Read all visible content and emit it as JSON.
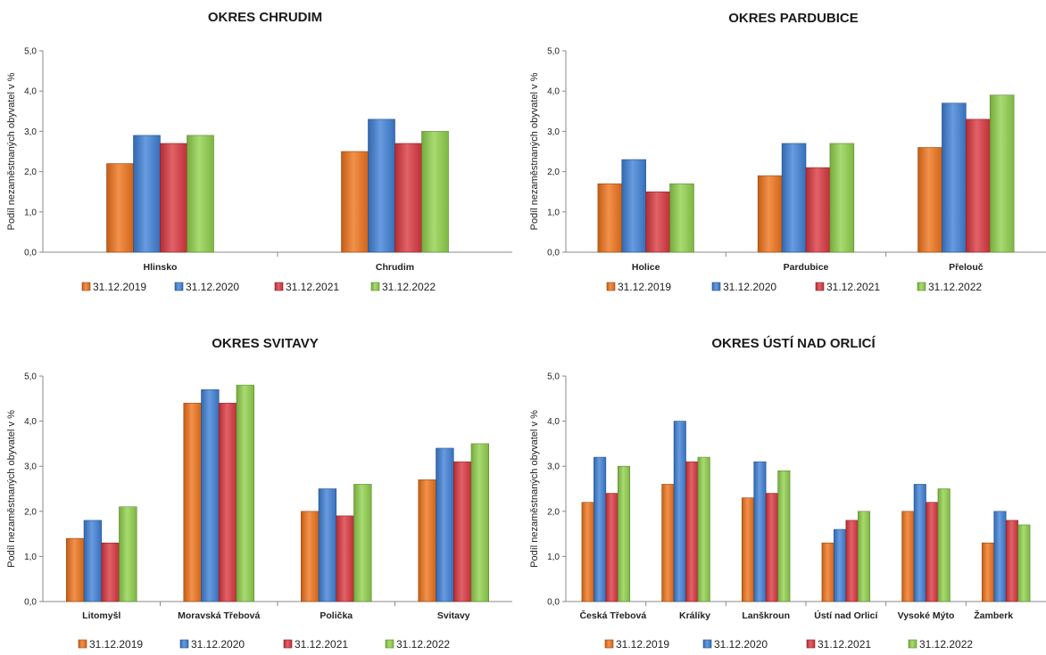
{
  "series_colors": [
    "#ee7219",
    "#3d7fd6",
    "#d9363e",
    "#8fd04a"
  ],
  "chart_data": [
    {
      "type": "bar",
      "title": "OKRES CHRUDIM",
      "ylabel": "Podíl nezaměstnaných obyvatel v %",
      "ylim": [
        0,
        5
      ],
      "yticks": [
        "0,0",
        "1,0",
        "2,0",
        "3,0",
        "4,0",
        "5,0"
      ],
      "grid": false,
      "legend": "bottom",
      "categories": [
        "Hlinsko",
        "Chrudim"
      ],
      "series": [
        {
          "name": "31.12.2019",
          "values": [
            2.2,
            2.5
          ]
        },
        {
          "name": "31.12.2020",
          "values": [
            2.9,
            3.3
          ]
        },
        {
          "name": "31.12.2021",
          "values": [
            2.7,
            2.7
          ]
        },
        {
          "name": "31.12.2022",
          "values": [
            2.9,
            3.0
          ]
        }
      ]
    },
    {
      "type": "bar",
      "title": "OKRES PARDUBICE",
      "ylabel": "Podíl nezaměstnaných obyvatel v %",
      "ylim": [
        0,
        5
      ],
      "yticks": [
        "0,0",
        "1,0",
        "2,0",
        "3,0",
        "4,0",
        "5,0"
      ],
      "grid": false,
      "legend": "bottom",
      "categories": [
        "Holice",
        "Pardubice",
        "Přelouč"
      ],
      "series": [
        {
          "name": "31.12.2019",
          "values": [
            1.7,
            1.9,
            2.6
          ]
        },
        {
          "name": "31.12.2020",
          "values": [
            2.3,
            2.7,
            3.7
          ]
        },
        {
          "name": "31.12.2021",
          "values": [
            1.5,
            2.1,
            3.3
          ]
        },
        {
          "name": "31.12.2022",
          "values": [
            1.7,
            2.7,
            3.9
          ]
        }
      ]
    },
    {
      "type": "bar",
      "title": "OKRES SVITAVY",
      "ylabel": "Podíl nezaměstnaných obyvatel v %",
      "ylim": [
        0,
        5
      ],
      "yticks": [
        "0,0",
        "1,0",
        "2,0",
        "3,0",
        "4,0",
        "5,0"
      ],
      "grid": false,
      "legend": "bottom",
      "categories": [
        "Litomyšl",
        "Moravská Třebová",
        "Polička",
        "Svitavy"
      ],
      "series": [
        {
          "name": "31.12.2019",
          "values": [
            1.4,
            4.4,
            2.0,
            2.7
          ]
        },
        {
          "name": "31.12.2020",
          "values": [
            1.8,
            4.7,
            2.5,
            3.4
          ]
        },
        {
          "name": "31.12.2021",
          "values": [
            1.3,
            4.4,
            1.9,
            3.1
          ]
        },
        {
          "name": "31.12.2022",
          "values": [
            2.1,
            4.8,
            2.6,
            3.5
          ]
        }
      ]
    },
    {
      "type": "bar",
      "title": "OKRES ÚSTÍ NAD ORLICÍ",
      "ylabel": "Podíl nezaměstnaných obyvatel v %",
      "ylim": [
        0,
        5
      ],
      "yticks": [
        "0,0",
        "1,0",
        "2,0",
        "3,0",
        "4,0",
        "5,0"
      ],
      "grid": false,
      "legend": "bottom",
      "categories": [
        "Česká Třebová",
        "Králíky",
        "Lanškroun",
        "Ústí nad Orlicí",
        "Vysoké Mýto",
        "Žamberk"
      ],
      "series": [
        {
          "name": "31.12.2019",
          "values": [
            2.2,
            2.6,
            2.3,
            1.3,
            2.0,
            1.3
          ]
        },
        {
          "name": "31.12.2020",
          "values": [
            3.2,
            4.0,
            3.1,
            1.6,
            2.6,
            2.0
          ]
        },
        {
          "name": "31.12.2021",
          "values": [
            2.4,
            3.1,
            2.4,
            1.8,
            2.2,
            1.8
          ]
        },
        {
          "name": "31.12.2022",
          "values": [
            3.0,
            3.2,
            2.9,
            2.0,
            2.5,
            1.7
          ]
        }
      ]
    }
  ]
}
